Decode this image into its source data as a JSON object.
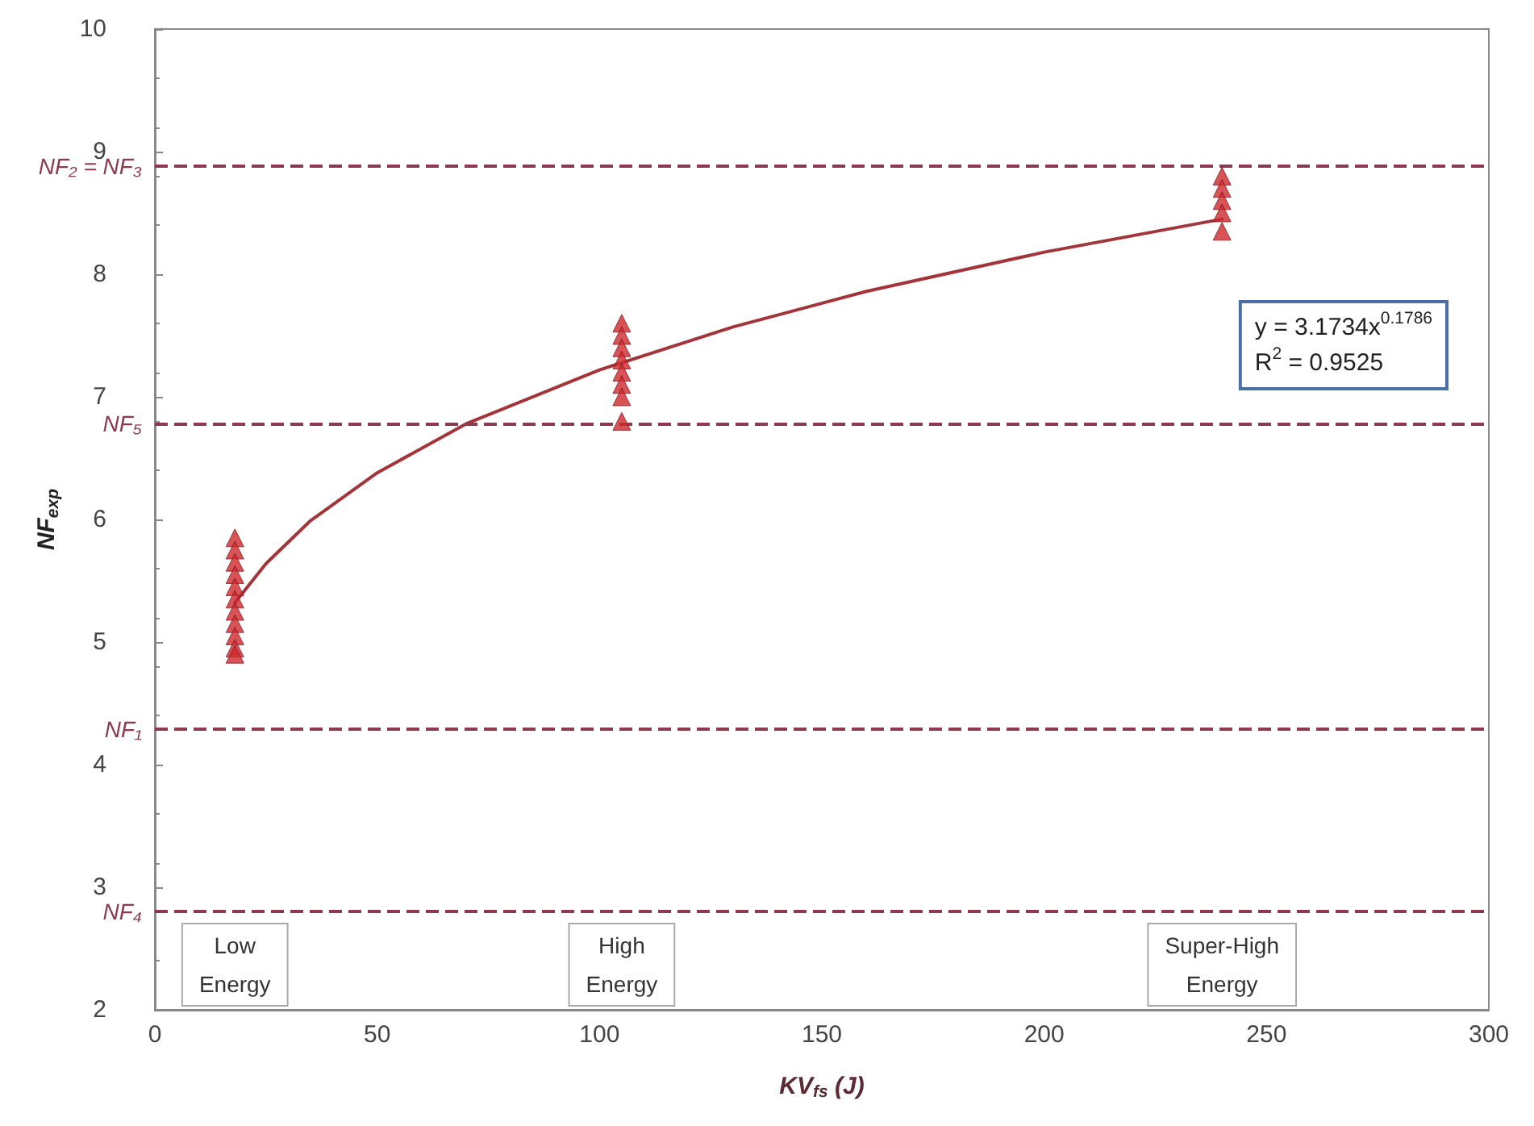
{
  "chart_data": {
    "type": "scatter",
    "xlabel": "KV$_{fs}$ (J)",
    "ylabel": "NF$_{exp}$",
    "xlim": [
      0,
      300
    ],
    "xticks": [
      0,
      50,
      100,
      150,
      200,
      250,
      300
    ],
    "ylim": [
      2,
      10
    ],
    "yticks": [
      2,
      3,
      4,
      5,
      6,
      7,
      8,
      9,
      10
    ],
    "grid": false,
    "marker": "triangle",
    "series": [
      {
        "type": "scatter",
        "color": "#d0282c",
        "x": [
          18,
          18,
          18,
          18,
          18,
          18,
          18,
          18,
          18,
          18,
          18,
          105,
          105,
          105,
          105,
          105,
          105,
          105,
          105,
          240,
          240,
          240,
          240,
          240
        ],
        "values": [
          5.85,
          5.75,
          5.65,
          5.55,
          5.45,
          5.35,
          5.25,
          5.15,
          5.05,
          4.95,
          4.9,
          7.6,
          7.5,
          7.4,
          7.3,
          7.2,
          7.1,
          7.0,
          6.8,
          8.8,
          8.7,
          8.6,
          8.5,
          8.35
        ]
      },
      {
        "type": "line",
        "color": "#a3353a",
        "marker": "none",
        "x": [
          18,
          25,
          35,
          50,
          70,
          100,
          130,
          160,
          200,
          240
        ],
        "values": [
          5.32,
          5.64,
          5.99,
          6.38,
          6.78,
          7.22,
          7.57,
          7.86,
          8.18,
          8.45
        ]
      }
    ],
    "ref_lines": [
      {
        "axis": "y",
        "value": 8.88,
        "label": "NF₂ = NF₃",
        "color": "#8e3a4e",
        "line_style": "dashed"
      },
      {
        "axis": "y",
        "value": 6.78,
        "label": "NF₅",
        "color": "#8e3a4e",
        "line_style": "dashed"
      },
      {
        "axis": "y",
        "value": 4.29,
        "label": "NF₁",
        "color": "#8e3a4e",
        "line_style": "dashed"
      },
      {
        "axis": "y",
        "value": 2.8,
        "label": "NF₄",
        "color": "#8e3a4e",
        "line_style": "dashed"
      }
    ],
    "annotations": [
      "Low\nEnergy",
      "High\nEnergy",
      "Super-High\nEnergy",
      "y = 3.1734x$^{0.1786}$\nR$^{2}$ = 0.9525"
    ]
  }
}
